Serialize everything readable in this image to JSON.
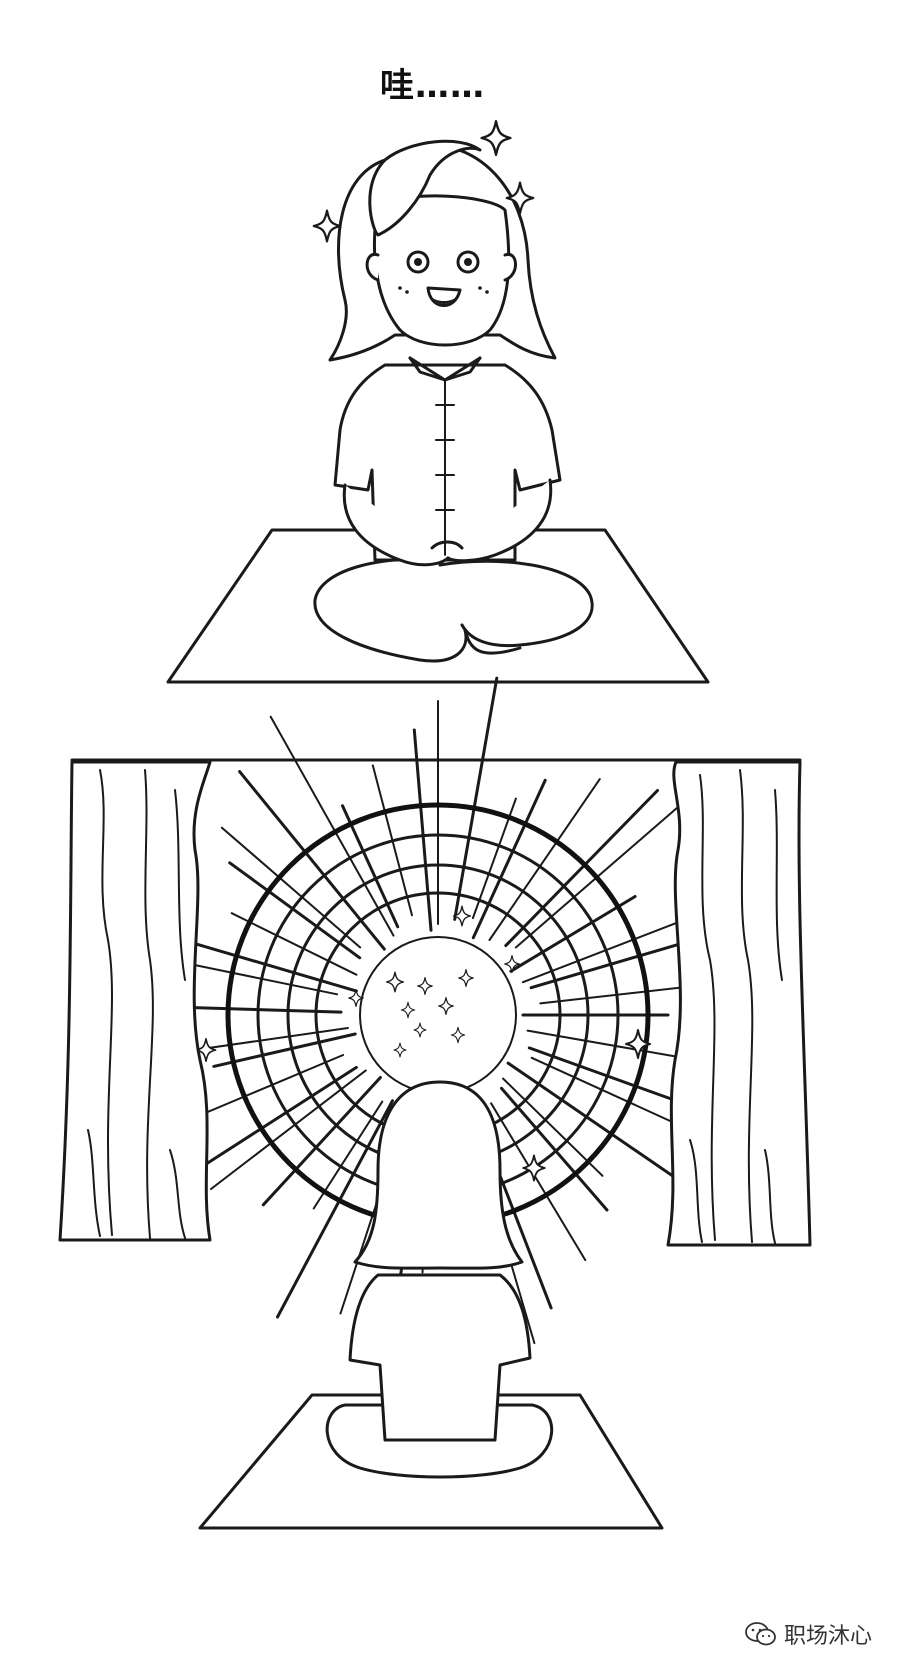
{
  "panel1": {
    "caption": "哇……"
  },
  "watermark": {
    "text": "职场沐心",
    "icon": "wechat-icon"
  },
  "colors": {
    "ink": "#1a1a1a",
    "paper": "#ffffff"
  }
}
